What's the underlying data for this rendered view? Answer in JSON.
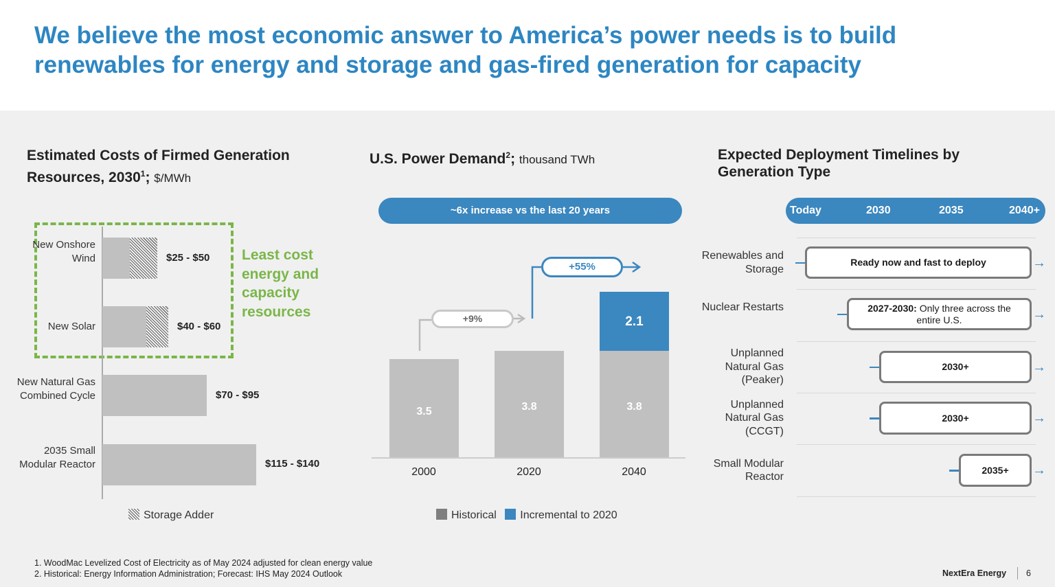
{
  "title": "We believe the most economic answer to America’s power needs is to build renewables for energy and storage and gas-fired generation for capacity",
  "colors": {
    "title": "#2d86c2",
    "accent_blue": "#3b87bf",
    "bar_gray": "#c0c0c0",
    "green": "#7ab648",
    "legend_historical": "#7f7f7f"
  },
  "chart_data": [
    {
      "type": "bar",
      "orientation": "horizontal",
      "title": "Estimated Costs of Firmed Generation Resources, 2030",
      "title_sup": "1",
      "unit": "$/MWh",
      "categories": [
        "New Onshore Wind",
        "New Solar",
        "New Natural Gas Combined Cycle",
        "2035 Small Modular Reactor"
      ],
      "series": [
        {
          "low": [
            25,
            40,
            70,
            115
          ],
          "high": [
            50,
            60,
            95,
            140
          ]
        }
      ],
      "storage_adder": [
        true,
        true,
        false,
        false
      ],
      "data_labels": [
        "$25 - $50",
        "$40 - $60",
        "$70 - $95",
        "$115 - $140"
      ],
      "legend": [
        "Storage Adder"
      ],
      "annotation": "Least cost energy and capacity resources"
    },
    {
      "type": "bar",
      "stacked": true,
      "title": "U.S. Power Demand",
      "title_sup": "2",
      "unit": "thousand TWh",
      "banner": "~6x increase vs the last 20 years",
      "categories": [
        "2000",
        "2020",
        "2040"
      ],
      "series": [
        {
          "name": "Historical",
          "values": [
            3.5,
            3.8,
            3.8
          ]
        },
        {
          "name": "Incremental to 2020",
          "values": [
            0,
            0,
            2.1
          ]
        }
      ],
      "annotations": [
        "+9%",
        "+55%"
      ],
      "legend_position": "bottom"
    }
  ],
  "timeline": {
    "title": "Expected Deployment Timelines by Generation Type",
    "axis": [
      "Today",
      "2030",
      "2035",
      "2040+"
    ],
    "rows": [
      {
        "label": "Renewables and Storage",
        "bold": "",
        "text": "Ready now and fast to deploy"
      },
      {
        "label": "Nuclear Restarts",
        "bold": "2027-2030:",
        "text": " Only three across the entire U.S."
      },
      {
        "label": "Unplanned Natural Gas (Peaker)",
        "bold": "2030+",
        "text": ""
      },
      {
        "label": "Unplanned Natural Gas (CCGT)",
        "bold": "2030+",
        "text": ""
      },
      {
        "label": "Small Modular Reactor",
        "bold": "2035+",
        "text": ""
      }
    ]
  },
  "footnotes": [
    "1.  WoodMac Levelized Cost of Electricity as of May 2024 adjusted for clean energy value",
    "2.  Historical: Energy Information Administration; Forecast: IHS May 2024 Outlook"
  ],
  "footer": {
    "company": "NextEra Energy",
    "page": "6"
  }
}
